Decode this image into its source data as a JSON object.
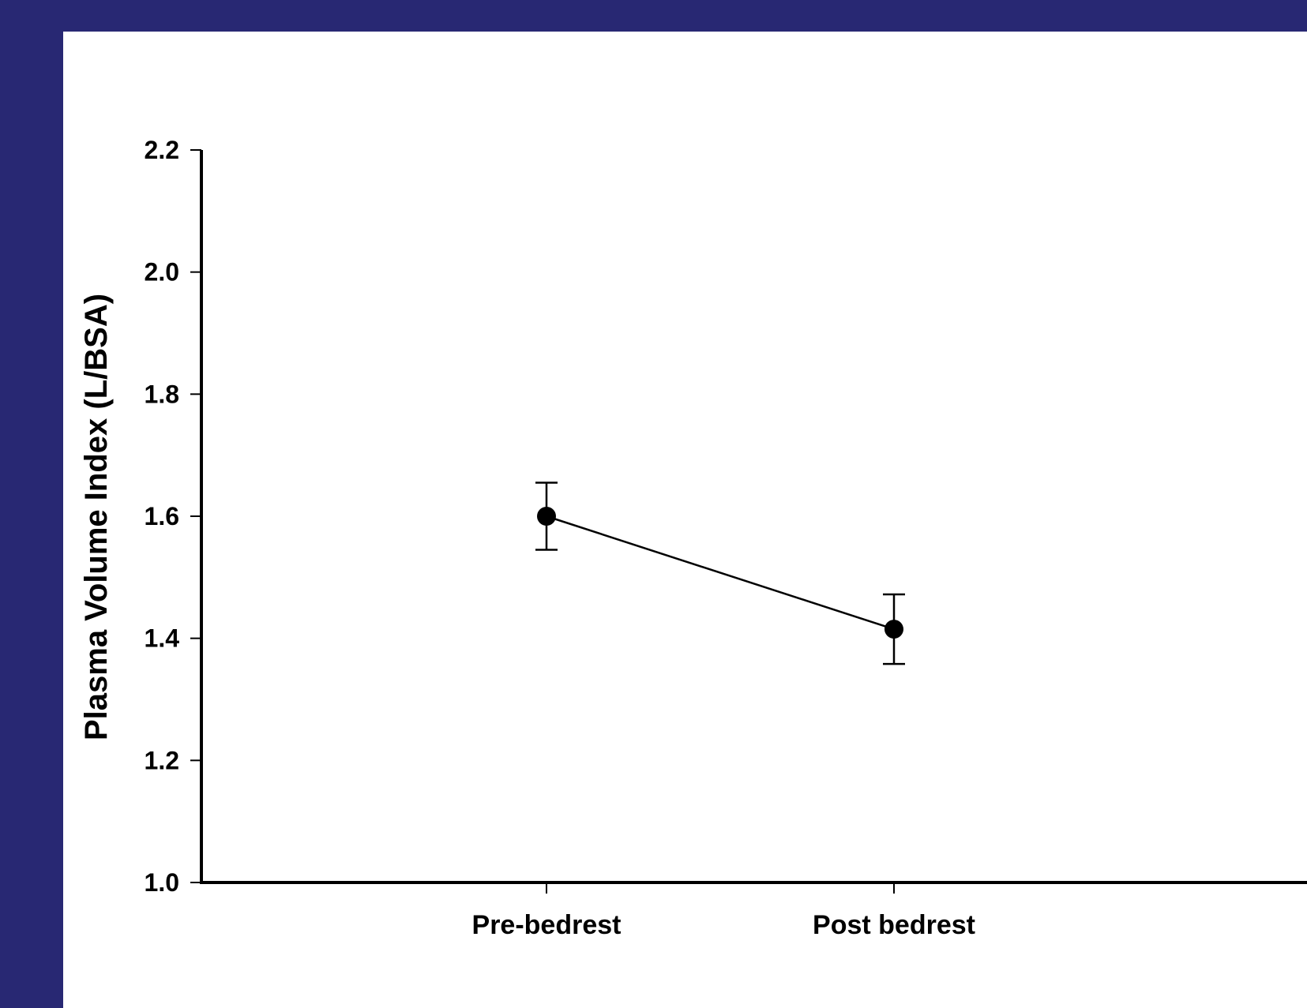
{
  "colors": {
    "frame_background": "#282873",
    "panel_background": "#ffffff",
    "ink": "#000000"
  },
  "chart_data": {
    "type": "scatter",
    "title": "",
    "xlabel": "",
    "ylabel": "Plasma Volume Index (L/BSA)",
    "ylim": [
      1.0,
      2.2
    ],
    "yticks": [
      1.0,
      1.2,
      1.4,
      1.6,
      1.8,
      2.0,
      2.2
    ],
    "ytick_labels": [
      "1.0",
      "1.2",
      "1.4",
      "1.6",
      "1.8",
      "2.0",
      "2.2"
    ],
    "categories": [
      "Pre-bedrest",
      "Post bedrest"
    ],
    "series": [
      {
        "values": [
          1.6,
          1.415
        ],
        "error": [
          0.055,
          0.057
        ],
        "marker": "filled-circle",
        "connected": true
      }
    ],
    "grid": false,
    "legend": "none"
  }
}
